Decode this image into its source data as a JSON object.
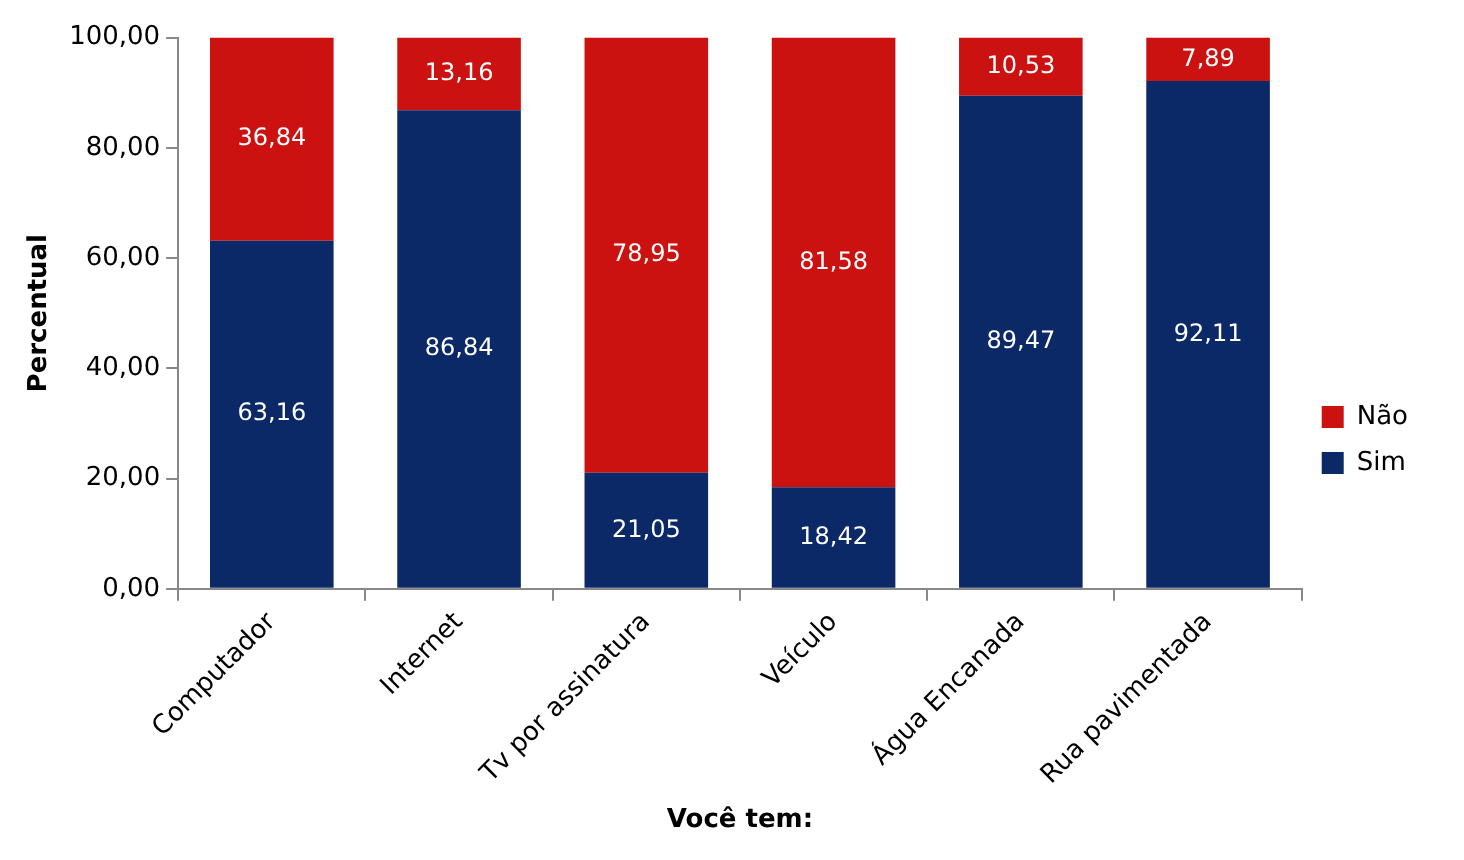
{
  "chart_data": {
    "type": "bar",
    "stacked": true,
    "xlabel": "Você tem:",
    "ylabel": "Percentual",
    "categories": [
      "Computador",
      "Internet",
      "Tv por assinatura",
      "Veículo",
      "Água Encanada",
      "Rua pavimentada"
    ],
    "series": [
      {
        "name": "Sim",
        "color": "#0b2867",
        "values": [
          63.16,
          86.84,
          21.05,
          18.42,
          89.47,
          92.11
        ],
        "value_labels": [
          "63,16",
          "86,84",
          "21,05",
          "18,42",
          "89,47",
          "92,11"
        ]
      },
      {
        "name": "Não",
        "color": "#cc1111",
        "values": [
          36.84,
          13.16,
          78.95,
          81.58,
          10.53,
          7.89
        ],
        "value_labels": [
          "36,84",
          "13,16",
          "78,95",
          "81,58",
          "10,53",
          "7,89"
        ]
      }
    ],
    "ylim": [
      0,
      100
    ],
    "yticks": [
      {
        "value": 0,
        "label": "0,00"
      },
      {
        "value": 20,
        "label": "20,00"
      },
      {
        "value": 40,
        "label": "40,00"
      },
      {
        "value": 60,
        "label": "60,00"
      },
      {
        "value": 80,
        "label": "80,00"
      },
      {
        "value": 100,
        "label": "100,00"
      }
    ],
    "grid": false,
    "legend": "right"
  }
}
